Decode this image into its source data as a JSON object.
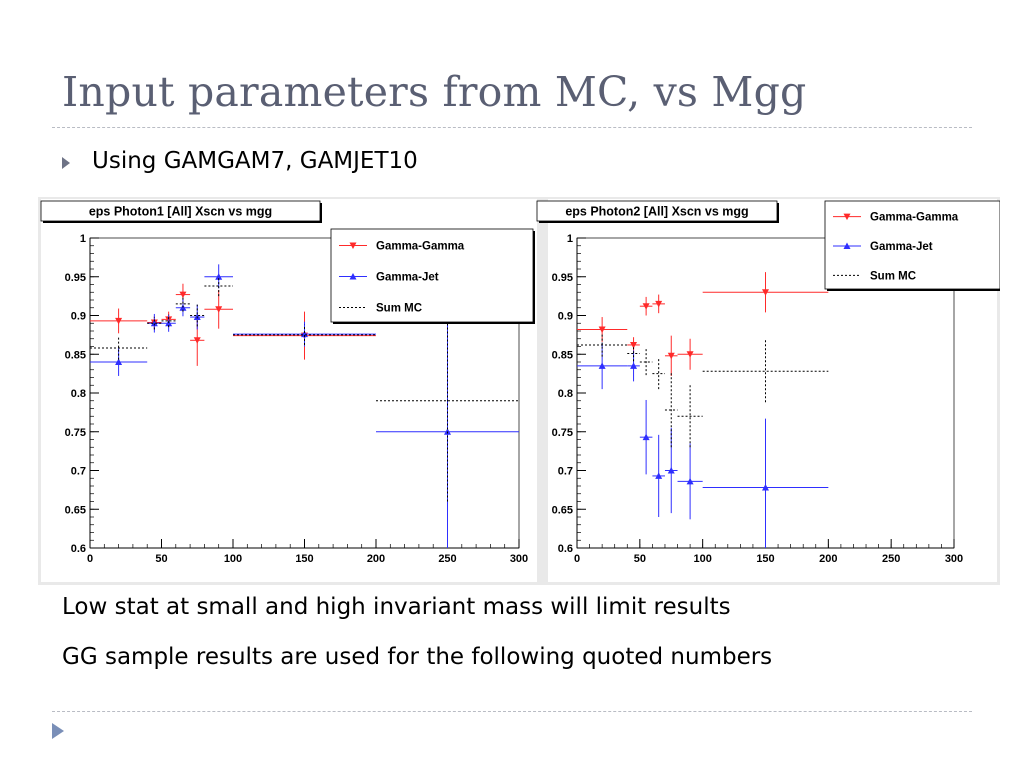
{
  "slide": {
    "title": "Input parameters from MC, vs Mgg",
    "bullet": "Using GAMGAM7, GAMJET10",
    "notes": [
      "Low stat at small and high invariant mass will limit results",
      "GG sample results are used for the following quoted numbers"
    ]
  },
  "chart_data": [
    {
      "type": "scatter",
      "title": "eps Photon1 [All] Xscn vs mgg",
      "xlim": [
        0,
        300
      ],
      "ylim": [
        0.6,
        1.0
      ],
      "xticks": [
        "0",
        "50",
        "100",
        "150",
        "200",
        "250",
        "300"
      ],
      "yticks": [
        "0.6",
        "0.65",
        "0.7",
        "0.75",
        "0.8",
        "0.85",
        "0.9",
        "0.95",
        "1"
      ],
      "grid": false,
      "legend_position": "top-right",
      "legend": [
        "Gamma-Gamma",
        "Gamma-Jet",
        "Sum MC"
      ],
      "colors": {
        "gamma_gamma": "#ff2a2a",
        "gamma_jet": "#2f2fff",
        "sum_mc": "#000000"
      },
      "series": [
        {
          "name": "Gamma-Gamma",
          "style": "marker-down",
          "points": [
            {
              "x": 20,
              "y": 0.893,
              "xlo": 0,
              "xhi": 40,
              "ylo": 0.877,
              "yhi": 0.909
            },
            {
              "x": 45,
              "y": 0.891,
              "xlo": 40,
              "xhi": 50,
              "ylo": 0.883,
              "yhi": 0.899
            },
            {
              "x": 55,
              "y": 0.895,
              "xlo": 50,
              "xhi": 60,
              "ylo": 0.885,
              "yhi": 0.905
            },
            {
              "x": 65,
              "y": 0.927,
              "xlo": 60,
              "xhi": 70,
              "ylo": 0.914,
              "yhi": 0.941
            },
            {
              "x": 75,
              "y": 0.868,
              "xlo": 70,
              "xhi": 80,
              "ylo": 0.835,
              "yhi": 0.901
            },
            {
              "x": 90,
              "y": 0.908,
              "xlo": 80,
              "xhi": 100,
              "ylo": 0.883,
              "yhi": 0.933
            },
            {
              "x": 150,
              "y": 0.874,
              "xlo": 100,
              "xhi": 200,
              "ylo": 0.843,
              "yhi": 0.905
            }
          ]
        },
        {
          "name": "Gamma-Jet",
          "style": "marker-up",
          "points": [
            {
              "x": 20,
              "y": 0.84,
              "xlo": 0,
              "xhi": 40,
              "ylo": 0.822,
              "yhi": 0.858
            },
            {
              "x": 45,
              "y": 0.89,
              "xlo": 40,
              "xhi": 50,
              "ylo": 0.878,
              "yhi": 0.902
            },
            {
              "x": 55,
              "y": 0.89,
              "xlo": 50,
              "xhi": 60,
              "ylo": 0.879,
              "yhi": 0.901
            },
            {
              "x": 65,
              "y": 0.91,
              "xlo": 60,
              "xhi": 70,
              "ylo": 0.899,
              "yhi": 0.921
            },
            {
              "x": 75,
              "y": 0.898,
              "xlo": 70,
              "xhi": 80,
              "ylo": 0.882,
              "yhi": 0.914
            },
            {
              "x": 90,
              "y": 0.95,
              "xlo": 80,
              "xhi": 100,
              "ylo": 0.935,
              "yhi": 0.966
            },
            {
              "x": 150,
              "y": 0.876,
              "xlo": 100,
              "xhi": 200,
              "ylo": 0.86,
              "yhi": 0.892
            },
            {
              "x": 250,
              "y": 0.75,
              "xlo": 200,
              "xhi": 300,
              "ylo": 0.5,
              "yhi": 1.0
            }
          ]
        },
        {
          "name": "Sum MC",
          "style": "dotted",
          "points": [
            {
              "x": 20,
              "y": 0.858,
              "xlo": 0,
              "xhi": 40,
              "ylo": 0.843,
              "yhi": 0.873
            },
            {
              "x": 45,
              "y": 0.89,
              "xlo": 40,
              "xhi": 50,
              "ylo": 0.882,
              "yhi": 0.898
            },
            {
              "x": 55,
              "y": 0.893,
              "xlo": 50,
              "xhi": 60,
              "ylo": 0.885,
              "yhi": 0.901
            },
            {
              "x": 65,
              "y": 0.915,
              "xlo": 60,
              "xhi": 70,
              "ylo": 0.905,
              "yhi": 0.925
            },
            {
              "x": 75,
              "y": 0.9,
              "xlo": 70,
              "xhi": 80,
              "ylo": 0.886,
              "yhi": 0.914
            },
            {
              "x": 90,
              "y": 0.938,
              "xlo": 80,
              "xhi": 100,
              "ylo": 0.925,
              "yhi": 0.951
            },
            {
              "x": 150,
              "y": 0.875,
              "xlo": 100,
              "xhi": 200,
              "ylo": 0.862,
              "yhi": 0.888
            },
            {
              "x": 250,
              "y": 0.79,
              "xlo": 200,
              "xhi": 300,
              "ylo": 0.66,
              "yhi": 0.92
            }
          ]
        }
      ]
    },
    {
      "type": "scatter",
      "title": "eps Photon2 [All] Xscn vs mgg",
      "xlim": [
        0,
        300
      ],
      "ylim": [
        0.6,
        1.0
      ],
      "xticks": [
        "0",
        "50",
        "100",
        "150",
        "200",
        "250",
        "300"
      ],
      "yticks": [
        "0.6",
        "0.65",
        "0.7",
        "0.75",
        "0.8",
        "0.85",
        "0.9",
        "0.95",
        "1"
      ],
      "grid": false,
      "legend_position": "top-right",
      "legend": [
        "Gamma-Gamma",
        "Gamma-Jet",
        "Sum MC"
      ],
      "colors": {
        "gamma_gamma": "#ff2a2a",
        "gamma_jet": "#2f2fff",
        "sum_mc": "#000000"
      },
      "series": [
        {
          "name": "Gamma-Gamma",
          "style": "marker-down",
          "points": [
            {
              "x": 20,
              "y": 0.882,
              "xlo": 0,
              "xhi": 40,
              "ylo": 0.866,
              "yhi": 0.898
            },
            {
              "x": 45,
              "y": 0.862,
              "xlo": 40,
              "xhi": 50,
              "ylo": 0.852,
              "yhi": 0.872
            },
            {
              "x": 55,
              "y": 0.912,
              "xlo": 50,
              "xhi": 60,
              "ylo": 0.9,
              "yhi": 0.924
            },
            {
              "x": 65,
              "y": 0.915,
              "xlo": 60,
              "xhi": 70,
              "ylo": 0.903,
              "yhi": 0.927
            },
            {
              "x": 75,
              "y": 0.848,
              "xlo": 70,
              "xhi": 80,
              "ylo": 0.822,
              "yhi": 0.874
            },
            {
              "x": 90,
              "y": 0.85,
              "xlo": 80,
              "xhi": 100,
              "ylo": 0.83,
              "yhi": 0.87
            },
            {
              "x": 150,
              "y": 0.93,
              "xlo": 100,
              "xhi": 200,
              "ylo": 0.904,
              "yhi": 0.956
            }
          ]
        },
        {
          "name": "Gamma-Jet",
          "style": "marker-up",
          "points": [
            {
              "x": 20,
              "y": 0.835,
              "xlo": 0,
              "xhi": 40,
              "ylo": 0.805,
              "yhi": 0.865
            },
            {
              "x": 45,
              "y": 0.835,
              "xlo": 40,
              "xhi": 50,
              "ylo": 0.815,
              "yhi": 0.855
            },
            {
              "x": 55,
              "y": 0.743,
              "xlo": 50,
              "xhi": 60,
              "ylo": 0.695,
              "yhi": 0.791
            },
            {
              "x": 65,
              "y": 0.693,
              "xlo": 60,
              "xhi": 70,
              "ylo": 0.64,
              "yhi": 0.746
            },
            {
              "x": 75,
              "y": 0.7,
              "xlo": 70,
              "xhi": 80,
              "ylo": 0.645,
              "yhi": 0.755
            },
            {
              "x": 90,
              "y": 0.686,
              "xlo": 80,
              "xhi": 100,
              "ylo": 0.637,
              "yhi": 0.735
            },
            {
              "x": 150,
              "y": 0.678,
              "xlo": 100,
              "xhi": 200,
              "ylo": 0.589,
              "yhi": 0.767
            }
          ]
        },
        {
          "name": "Sum MC",
          "style": "dotted",
          "points": [
            {
              "x": 20,
              "y": 0.862,
              "xlo": 0,
              "xhi": 40,
              "ylo": 0.847,
              "yhi": 0.877
            },
            {
              "x": 45,
              "y": 0.851,
              "xlo": 40,
              "xhi": 50,
              "ylo": 0.841,
              "yhi": 0.861
            },
            {
              "x": 55,
              "y": 0.84,
              "xlo": 50,
              "xhi": 60,
              "ylo": 0.823,
              "yhi": 0.857
            },
            {
              "x": 65,
              "y": 0.825,
              "xlo": 60,
              "xhi": 70,
              "ylo": 0.805,
              "yhi": 0.845
            },
            {
              "x": 75,
              "y": 0.778,
              "xlo": 70,
              "xhi": 80,
              "ylo": 0.73,
              "yhi": 0.826
            },
            {
              "x": 90,
              "y": 0.77,
              "xlo": 80,
              "xhi": 100,
              "ylo": 0.73,
              "yhi": 0.81
            },
            {
              "x": 150,
              "y": 0.828,
              "xlo": 100,
              "xhi": 200,
              "ylo": 0.788,
              "yhi": 0.868
            }
          ]
        }
      ]
    }
  ]
}
